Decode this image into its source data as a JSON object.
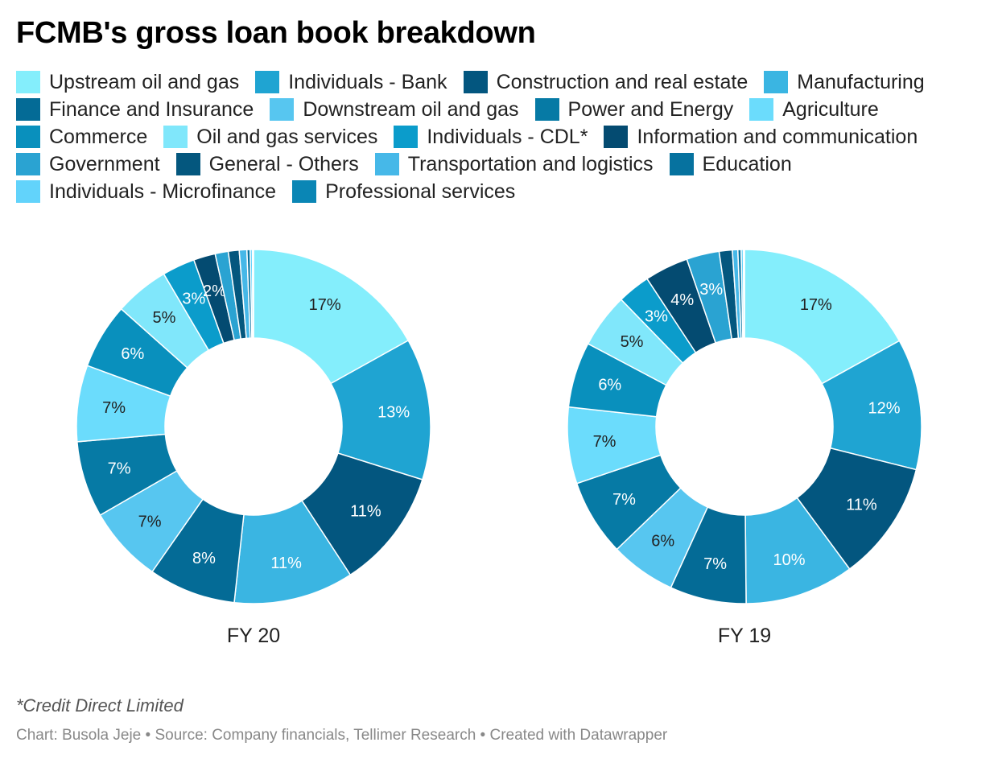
{
  "title": "FCMB's gross loan book breakdown",
  "notes": "*Credit Direct Limited",
  "credit": "Chart: Busola Jeje • Source: Company financials, Tellimer Research • Created with Datawrapper",
  "chart_data": {
    "type": "pie",
    "donut": true,
    "legend_position": "top",
    "categories": [
      "Upstream oil and gas",
      "Individuals - Bank",
      "Construction and real estate",
      "Manufacturing",
      "Finance and Insurance",
      "Downstream oil and gas",
      "Power and Energy",
      "Agriculture",
      "Commerce",
      "Oil and gas services",
      "Individuals - CDL*",
      "Information and communication",
      "Government",
      "General - Others",
      "Transportation and logistics",
      "Education",
      "Individuals - Microfinance",
      "Professional services"
    ],
    "colors": [
      "#84eefc",
      "#1fa4d2",
      "#03567f",
      "#3ab5e2",
      "#046b96",
      "#57c6f0",
      "#067aa5",
      "#6bdcfc",
      "#0990bd",
      "#80e7fb",
      "#0b9ccb",
      "#044b71",
      "#2aa3d2",
      "#04577e",
      "#46b8e8",
      "#06729f",
      "#62d3fb",
      "#0a86b5"
    ],
    "charts": [
      {
        "name": "FY 20",
        "values": [
          17,
          13,
          11,
          11,
          8,
          7,
          7,
          7,
          6,
          5,
          3,
          2,
          1.2,
          1.0,
          0.7,
          0.3,
          0.2,
          0.1
        ],
        "labels": [
          "17%",
          "13%",
          "11%",
          "11%",
          "8%",
          "7%",
          "7%",
          "7%",
          "6%",
          "5%",
          "3%",
          "2%",
          "",
          "",
          "",
          "",
          "",
          ""
        ]
      },
      {
        "name": "FY 19",
        "values": [
          17,
          12,
          11,
          10,
          7,
          6,
          7,
          7,
          6,
          5,
          3,
          4,
          3,
          1.2,
          0.5,
          0.3,
          0.2,
          0.1
        ],
        "labels": [
          "17%",
          "12%",
          "11%",
          "10%",
          "7%",
          "6%",
          "7%",
          "7%",
          "6%",
          "5%",
          "3%",
          "4%",
          "3%",
          "",
          "",
          "",
          "",
          ""
        ]
      }
    ]
  }
}
